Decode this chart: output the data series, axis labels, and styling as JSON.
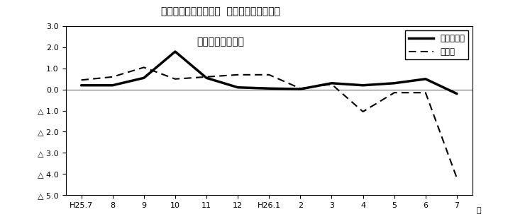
{
  "title_line1": "第３図　常用雇用指数  対前年同月比の推移",
  "title_line2": "（規模５人以上）",
  "xlabel": "月",
  "ylabel": "%",
  "x_labels": [
    "H25.7",
    "8",
    "9",
    "10",
    "11",
    "12",
    "H26.1",
    "2",
    "3",
    "4",
    "5",
    "6",
    "7"
  ],
  "ylim": [
    -5.0,
    3.0
  ],
  "yticks": [
    3.0,
    2.0,
    1.0,
    0.0,
    -1.0,
    -2.0,
    -3.0,
    -4.0,
    -5.0
  ],
  "ytick_labels": [
    "3.0",
    "2.0",
    "1.0",
    "0.0",
    "△ 1.0",
    "△ 2.0",
    "△ 3.0",
    "△ 4.0",
    "△ 5.0"
  ],
  "series_solid": [
    0.2,
    0.2,
    0.55,
    1.8,
    0.55,
    0.1,
    0.05,
    0.02,
    0.3,
    0.2,
    0.3,
    0.5,
    -0.2
  ],
  "series_dashed": [
    0.45,
    0.6,
    1.05,
    0.5,
    0.6,
    0.7,
    0.7,
    0.05,
    0.25,
    -1.05,
    -0.15,
    -0.15,
    -4.2
  ],
  "legend_solid": "調査産業計",
  "legend_dashed": "製造業",
  "line_color": "#000000",
  "bg_color": "#ffffff",
  "zero_line_color": "#666666"
}
